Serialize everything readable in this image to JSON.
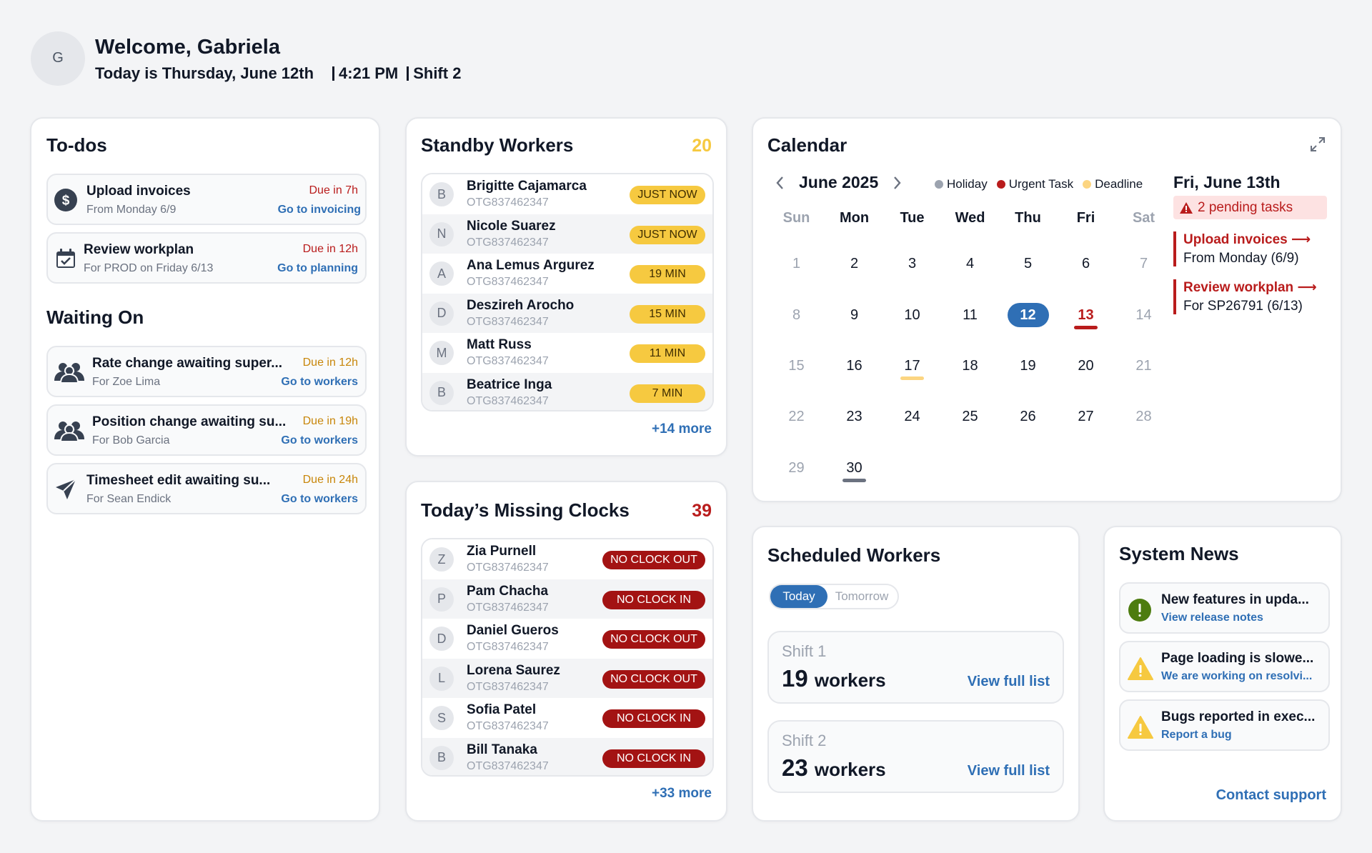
{
  "header": {
    "avatar_initial": "G",
    "welcome": "Welcome, Gabriela",
    "date_text": "Today is Thursday, June 12th",
    "time": "4:21 PM",
    "shift": "Shift 2"
  },
  "todos": {
    "title": "To-dos",
    "items": [
      {
        "title": "Upload invoices",
        "sub": "From Monday 6/9",
        "due": "Due in 7h",
        "link": "Go to invoicing",
        "icon": "dollar-icon"
      },
      {
        "title": "Review workplan",
        "sub": "For PROD on Friday 6/13",
        "due": "Due in 12h",
        "link": "Go to planning",
        "icon": "calendar-check-icon"
      }
    ],
    "waiting_title": "Waiting On",
    "waiting": [
      {
        "title": "Rate change awaiting super...",
        "sub": "For Zoe Lima",
        "due": "Due in 12h",
        "link": "Go to workers",
        "icon": "users-icon"
      },
      {
        "title": "Position change awaiting su...",
        "sub": "For Bob Garcia",
        "due": "Due in 19h",
        "link": "Go to workers",
        "icon": "users-icon"
      },
      {
        "title": "Timesheet edit awaiting su...",
        "sub": "For Sean Endick",
        "due": "Due in 24h",
        "link": "Go to workers",
        "icon": "send-icon"
      }
    ]
  },
  "standby": {
    "title": "Standby Workers",
    "count": "20",
    "workers": [
      {
        "initial": "B",
        "name": "Brigitte Cajamarca",
        "id": "OTG837462347",
        "status": "JUST NOW"
      },
      {
        "initial": "N",
        "name": "Nicole Suarez",
        "id": "OTG837462347",
        "status": "JUST NOW"
      },
      {
        "initial": "A",
        "name": "Ana Lemus Argurez",
        "id": "OTG837462347",
        "status": "19 MIN"
      },
      {
        "initial": "D",
        "name": "Deszireh Arocho",
        "id": "OTG837462347",
        "status": "15 MIN"
      },
      {
        "initial": "M",
        "name": "Matt Russ",
        "id": "OTG837462347",
        "status": "11 MIN"
      },
      {
        "initial": "B",
        "name": "Beatrice Inga",
        "id": "OTG837462347",
        "status": "7 MIN"
      }
    ],
    "more": "+14 more"
  },
  "missing": {
    "title": "Today’s Missing Clocks",
    "count": "39",
    "workers": [
      {
        "initial": "Z",
        "name": "Zia Purnell",
        "id": "OTG837462347",
        "status": "NO CLOCK OUT"
      },
      {
        "initial": "P",
        "name": "Pam Chacha",
        "id": "OTG837462347",
        "status": "NO CLOCK IN"
      },
      {
        "initial": "D",
        "name": "Daniel Gueros",
        "id": "OTG837462347",
        "status": "NO CLOCK OUT"
      },
      {
        "initial": "L",
        "name": "Lorena Saurez",
        "id": "OTG837462347",
        "status": "NO CLOCK OUT"
      },
      {
        "initial": "S",
        "name": "Sofia Patel",
        "id": "OTG837462347",
        "status": "NO CLOCK IN"
      },
      {
        "initial": "B",
        "name": "Bill Tanaka",
        "id": "OTG837462347",
        "status": "NO CLOCK IN"
      }
    ],
    "more": "+33 more"
  },
  "calendar": {
    "title": "Calendar",
    "month": "June 2025",
    "legend": [
      {
        "label": "Holiday",
        "color": "#9ca3af"
      },
      {
        "label": "Urgent Task",
        "color": "#b91c1c"
      },
      {
        "label": "Deadline",
        "color": "#fcd581"
      }
    ],
    "weekdays": [
      "Sun",
      "Mon",
      "Tue",
      "Wed",
      "Thu",
      "Fri",
      "Sat"
    ],
    "weeks": [
      [
        "1",
        "2",
        "3",
        "4",
        "5",
        "6",
        "7"
      ],
      [
        "8",
        "9",
        "10",
        "11",
        "12",
        "13",
        "14"
      ],
      [
        "15",
        "16",
        "17",
        "18",
        "19",
        "20",
        "21"
      ],
      [
        "22",
        "23",
        "24",
        "25",
        "26",
        "27",
        "28"
      ],
      [
        "29",
        "30",
        "",
        "",
        "",
        "",
        ""
      ]
    ],
    "today": "12",
    "urgent_day": "13",
    "deadline_day": "17",
    "holiday_day": "30",
    "side_date": "Fri, June 13th",
    "pending": "2 pending tasks",
    "tasks": [
      {
        "title": "Upload invoices",
        "sub": "From Monday (6/9)"
      },
      {
        "title": "Review workplan",
        "sub": "For SP26791 (6/13)"
      }
    ]
  },
  "scheduled": {
    "title": "Scheduled Workers",
    "tab_today": "Today",
    "tab_tomorrow": "Tomorrow",
    "shifts": [
      {
        "label": "Shift 1",
        "count": "19",
        "unit": "workers",
        "link": "View full list"
      },
      {
        "label": "Shift 2",
        "count": "23",
        "unit": "workers",
        "link": "View full list"
      }
    ]
  },
  "news": {
    "title": "System News",
    "items": [
      {
        "title": "New features in upda...",
        "link": "View release notes",
        "icon": "info-icon"
      },
      {
        "title": "Page loading is slowe...",
        "link": "We are working on resolvi...",
        "icon": "warning-icon"
      },
      {
        "title": "Bugs reported in exec...",
        "link": "Report a bug",
        "icon": "warning-icon"
      }
    ],
    "contact": "Contact support"
  },
  "colors": {
    "accent": "#2f6fb5",
    "urgent": "#b91c1c",
    "standby_count": "#f6c940",
    "missing_count": "#b91c1c"
  }
}
